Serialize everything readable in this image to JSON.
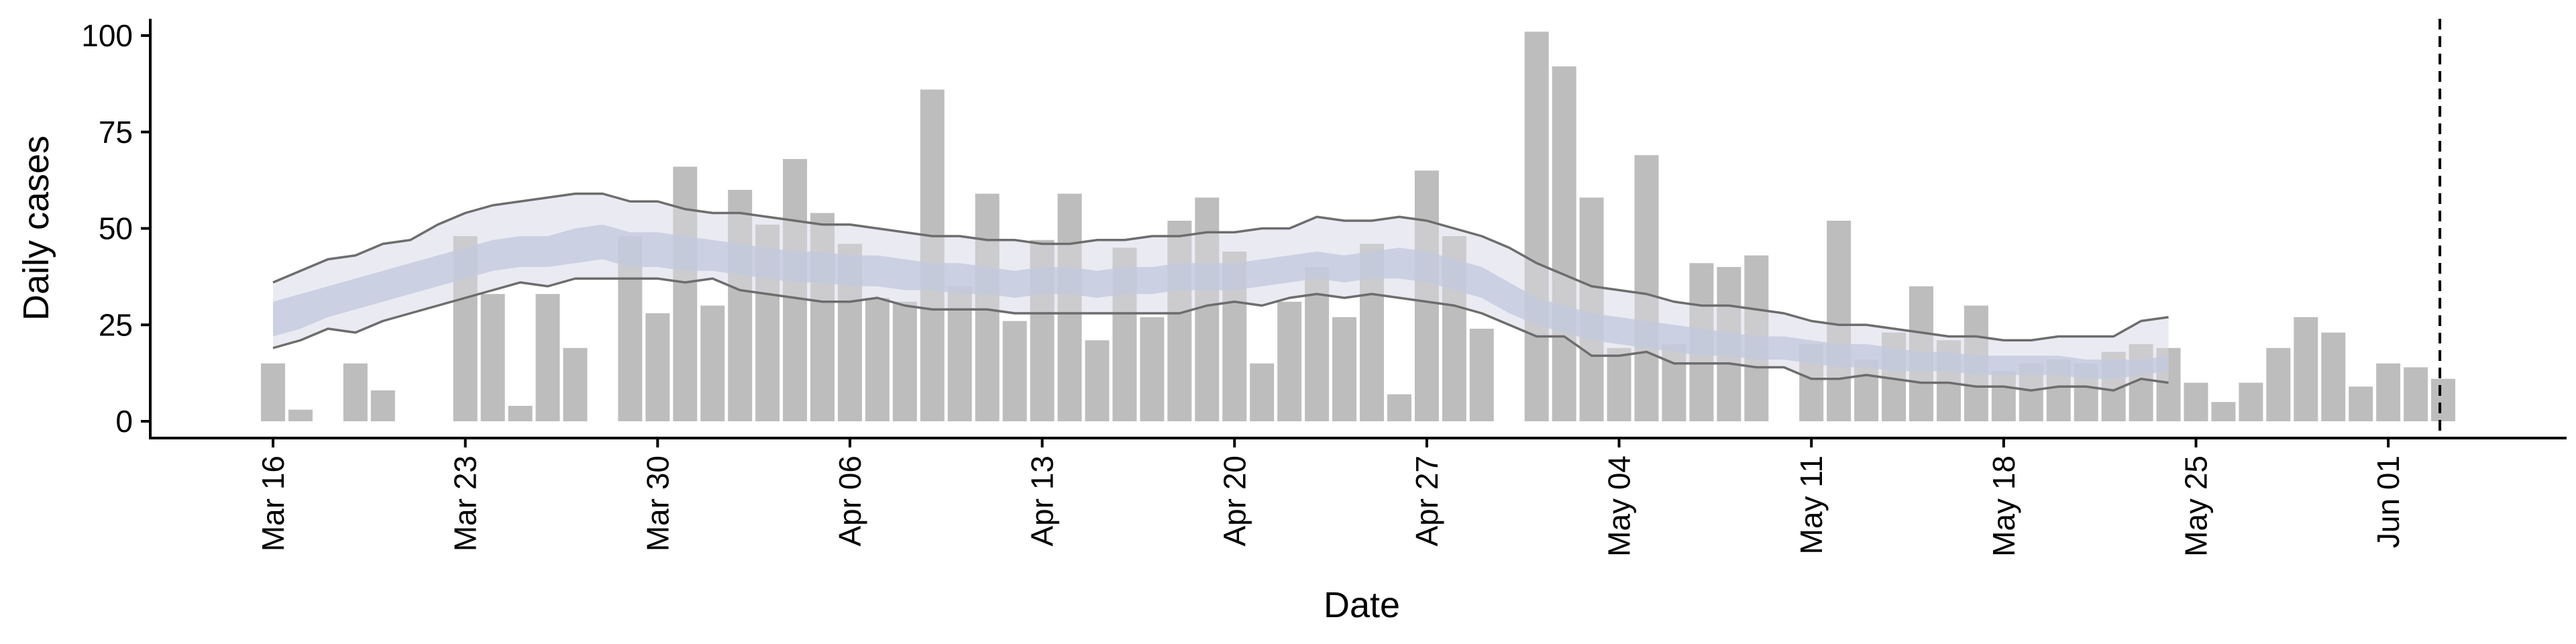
{
  "chart_data": {
    "type": "bar",
    "xlabel": "Date",
    "ylabel": "Daily cases",
    "ylim": [
      0,
      105
    ],
    "yticks": [
      0,
      25,
      50,
      75,
      100
    ],
    "xticks": [
      "Mar 16",
      "Mar 23",
      "Mar 30",
      "Apr 06",
      "Apr 13",
      "Apr 20",
      "Apr 27",
      "May 04",
      "May 11",
      "May 18",
      "May 25",
      "Jun 01"
    ],
    "x_start": "2020-03-16",
    "x_end": "2020-06-03",
    "grid": false,
    "legend": "none",
    "vline_date": "2020-06-02",
    "bars": {
      "name": "Daily cases",
      "color": "#bdbdbd",
      "dates": [
        "2020-03-16",
        "2020-03-17",
        "2020-03-18",
        "2020-03-19",
        "2020-03-20",
        "2020-03-21",
        "2020-03-22",
        "2020-03-23",
        "2020-03-24",
        "2020-03-25",
        "2020-03-26",
        "2020-03-27",
        "2020-03-28",
        "2020-03-29",
        "2020-03-30",
        "2020-03-31",
        "2020-04-01",
        "2020-04-02",
        "2020-04-03",
        "2020-04-04",
        "2020-04-05",
        "2020-04-06",
        "2020-04-07",
        "2020-04-08",
        "2020-04-09",
        "2020-04-10",
        "2020-04-11",
        "2020-04-12",
        "2020-04-13",
        "2020-04-14",
        "2020-04-15",
        "2020-04-16",
        "2020-04-17",
        "2020-04-18",
        "2020-04-19",
        "2020-04-20",
        "2020-04-21",
        "2020-04-22",
        "2020-04-23",
        "2020-04-24",
        "2020-04-25",
        "2020-04-26",
        "2020-04-27",
        "2020-04-28",
        "2020-04-29",
        "2020-04-30",
        "2020-05-01",
        "2020-05-02",
        "2020-05-03",
        "2020-05-04",
        "2020-05-05",
        "2020-05-06",
        "2020-05-07",
        "2020-05-08",
        "2020-05-09",
        "2020-05-10",
        "2020-05-11",
        "2020-05-12",
        "2020-05-13",
        "2020-05-14",
        "2020-05-15",
        "2020-05-16",
        "2020-05-17",
        "2020-05-18",
        "2020-05-19",
        "2020-05-20",
        "2020-05-21",
        "2020-05-22",
        "2020-05-23",
        "2020-05-24",
        "2020-05-25",
        "2020-05-26",
        "2020-05-27",
        "2020-05-28",
        "2020-05-29",
        "2020-05-30",
        "2020-05-31",
        "2020-06-01",
        "2020-06-02",
        "2020-06-03"
      ],
      "values": [
        15,
        3,
        0,
        15,
        8,
        0,
        0,
        48,
        33,
        4,
        33,
        19,
        0,
        48,
        28,
        66,
        30,
        60,
        51,
        68,
        54,
        46,
        32,
        31,
        86,
        35,
        59,
        26,
        47,
        59,
        21,
        45,
        27,
        52,
        58,
        44,
        15,
        31,
        40,
        27,
        46,
        7,
        65,
        48,
        24,
        0,
        101,
        92,
        58,
        19,
        69,
        20,
        41,
        40,
        43,
        0,
        20,
        52,
        16,
        23,
        35,
        21,
        30,
        13,
        15,
        16,
        15,
        18,
        20,
        19,
        10,
        5,
        10,
        19,
        27,
        23,
        9,
        15,
        14,
        11
      ]
    },
    "estimate": {
      "name": "Estimate",
      "outer_color": "#e8e9f1",
      "inner_color": "#c3c9dd",
      "bound_line_color": "#6d6d6d",
      "dates": [
        "2020-03-16",
        "2020-03-17",
        "2020-03-18",
        "2020-03-19",
        "2020-03-20",
        "2020-03-21",
        "2020-03-22",
        "2020-03-23",
        "2020-03-24",
        "2020-03-25",
        "2020-03-26",
        "2020-03-27",
        "2020-03-28",
        "2020-03-29",
        "2020-03-30",
        "2020-03-31",
        "2020-04-01",
        "2020-04-02",
        "2020-04-03",
        "2020-04-04",
        "2020-04-05",
        "2020-04-06",
        "2020-04-07",
        "2020-04-08",
        "2020-04-09",
        "2020-04-10",
        "2020-04-11",
        "2020-04-12",
        "2020-04-13",
        "2020-04-14",
        "2020-04-15",
        "2020-04-16",
        "2020-04-17",
        "2020-04-18",
        "2020-04-19",
        "2020-04-20",
        "2020-04-21",
        "2020-04-22",
        "2020-04-23",
        "2020-04-24",
        "2020-04-25",
        "2020-04-26",
        "2020-04-27",
        "2020-04-28",
        "2020-04-29",
        "2020-04-30",
        "2020-05-01",
        "2020-05-02",
        "2020-05-03",
        "2020-05-04",
        "2020-05-05",
        "2020-05-06",
        "2020-05-07",
        "2020-05-08",
        "2020-05-09",
        "2020-05-10",
        "2020-05-11",
        "2020-05-12",
        "2020-05-13",
        "2020-05-14",
        "2020-05-15",
        "2020-05-16",
        "2020-05-17",
        "2020-05-18",
        "2020-05-19",
        "2020-05-20",
        "2020-05-21",
        "2020-05-22",
        "2020-05-23",
        "2020-05-24"
      ],
      "outer_upper": [
        36,
        39,
        42,
        43,
        46,
        47,
        51,
        54,
        56,
        57,
        58,
        59,
        59,
        57,
        57,
        55,
        54,
        54,
        53,
        52,
        51,
        51,
        50,
        49,
        48,
        48,
        47,
        47,
        46,
        46,
        47,
        47,
        48,
        48,
        49,
        49,
        50,
        50,
        53,
        52,
        52,
        53,
        52,
        50,
        48,
        45,
        41,
        38,
        35,
        34,
        33,
        31,
        30,
        30,
        29,
        28,
        26,
        25,
        25,
        24,
        23,
        22,
        22,
        21,
        21,
        22,
        22,
        22,
        26,
        27
      ],
      "outer_lower": [
        19,
        21,
        24,
        23,
        26,
        28,
        30,
        32,
        34,
        36,
        35,
        37,
        37,
        37,
        37,
        36,
        37,
        34,
        33,
        32,
        31,
        31,
        32,
        30,
        29,
        29,
        29,
        28,
        28,
        28,
        28,
        28,
        28,
        28,
        30,
        31,
        30,
        32,
        33,
        32,
        33,
        32,
        31,
        30,
        28,
        25,
        22,
        22,
        17,
        17,
        18,
        15,
        15,
        15,
        14,
        14,
        11,
        11,
        12,
        11,
        10,
        10,
        9,
        9,
        8,
        9,
        9,
        8,
        11,
        10
      ],
      "inner_upper": [
        31,
        33,
        35,
        37,
        39,
        41,
        43,
        45,
        47,
        48,
        48,
        50,
        51,
        49,
        49,
        48,
        47,
        46,
        45,
        44,
        44,
        43,
        43,
        42,
        41,
        41,
        40,
        39,
        40,
        40,
        39,
        40,
        40,
        41,
        41,
        41,
        42,
        43,
        44,
        43,
        44,
        45,
        44,
        42,
        40,
        36,
        32,
        30,
        28,
        27,
        26,
        25,
        24,
        23,
        22,
        22,
        21,
        20,
        20,
        19,
        18,
        18,
        17,
        17,
        17,
        17,
        16,
        16,
        16,
        17
      ],
      "inner_lower": [
        22,
        24,
        27,
        29,
        31,
        33,
        35,
        37,
        39,
        40,
        40,
        41,
        42,
        40,
        40,
        39,
        39,
        38,
        37,
        36,
        36,
        35,
        35,
        34,
        34,
        33,
        33,
        32,
        33,
        33,
        32,
        33,
        33,
        34,
        34,
        34,
        35,
        36,
        37,
        36,
        37,
        37,
        36,
        34,
        32,
        28,
        25,
        23,
        21,
        20,
        19,
        18,
        17,
        17,
        16,
        16,
        15,
        14,
        14,
        13,
        13,
        13,
        12,
        12,
        12,
        12,
        11,
        11,
        12,
        13
      ]
    }
  }
}
